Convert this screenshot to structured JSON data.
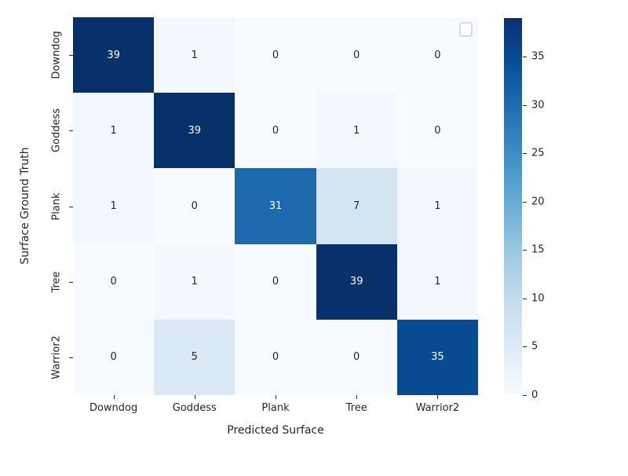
{
  "figure": {
    "background": "#ffffff",
    "text_color": "#262626"
  },
  "chart_data": {
    "type": "heatmap",
    "title": "",
    "xlabel": "Predicted Surface",
    "ylabel": "Surface Ground Truth",
    "categories_x": [
      "Downdog",
      "Goddess",
      "Plank",
      "Tree",
      "Warrior2"
    ],
    "categories_y": [
      "Downdog",
      "Goddess",
      "Plank",
      "Tree",
      "Warrior2"
    ],
    "matrix": [
      [
        39,
        1,
        0,
        0,
        0
      ],
      [
        1,
        39,
        0,
        1,
        0
      ],
      [
        1,
        0,
        31,
        7,
        1
      ],
      [
        0,
        1,
        0,
        39,
        1
      ],
      [
        0,
        5,
        0,
        0,
        35
      ]
    ],
    "vmin": 0,
    "vmax": 39,
    "colormap": "Blues",
    "colormap_anchors": [
      "#f7fbff",
      "#deebf7",
      "#c6dbef",
      "#9ecae1",
      "#6baed6",
      "#4292c6",
      "#2171b5",
      "#08519c",
      "#08306b"
    ],
    "cell_colors": [
      [
        "#08306b",
        "#f2f8fd",
        "#f7fbff",
        "#f7fbff",
        "#f7fbff"
      ],
      [
        "#f2f8fd",
        "#08306b",
        "#f7fbff",
        "#f2f8fd",
        "#f7fbff"
      ],
      [
        "#f2f8fd",
        "#f7fbff",
        "#1e68ad",
        "#d3e4f3",
        "#f2f8fd"
      ],
      [
        "#f7fbff",
        "#f2f8fd",
        "#f7fbff",
        "#08306b",
        "#f2f8fd"
      ],
      [
        "#f7fbff",
        "#dbe8f5",
        "#f7fbff",
        "#f7fbff",
        "#084b93"
      ]
    ],
    "annot_color_on_dark": "#ffffff",
    "annot_color_on_light": "#262626",
    "grid": false,
    "legend": {
      "present": true,
      "entries": []
    },
    "colorbar": {
      "ticks": [
        0,
        5,
        10,
        15,
        20,
        25,
        30,
        35
      ],
      "position": "right"
    }
  }
}
